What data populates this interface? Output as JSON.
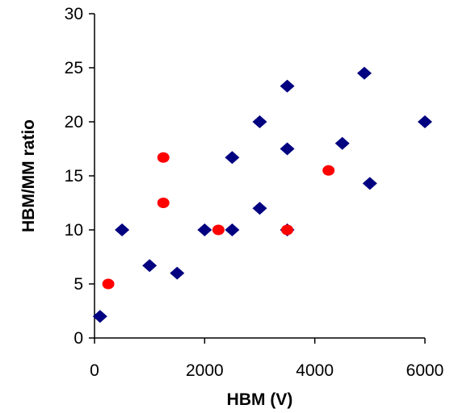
{
  "chart_data": {
    "type": "scatter",
    "title": "",
    "xlabel": "HBM (V)",
    "ylabel": "HBM/MM ratio",
    "xlim": [
      0,
      6000
    ],
    "ylim": [
      0,
      30
    ],
    "x_ticks": [
      "0",
      "2000",
      "4000",
      "6000"
    ],
    "y_ticks": [
      "0",
      "5",
      "10",
      "15",
      "20",
      "25",
      "30"
    ],
    "grid": false,
    "legend": "none",
    "series": [
      {
        "marker": "diamond",
        "color": "#000080",
        "points": [
          {
            "x": 100,
            "y": 2
          },
          {
            "x": 500,
            "y": 10
          },
          {
            "x": 1000,
            "y": 6.7
          },
          {
            "x": 1500,
            "y": 6
          },
          {
            "x": 2000,
            "y": 10
          },
          {
            "x": 2500,
            "y": 16.7
          },
          {
            "x": 2500,
            "y": 10
          },
          {
            "x": 3000,
            "y": 20
          },
          {
            "x": 3000,
            "y": 12
          },
          {
            "x": 3500,
            "y": 23.3
          },
          {
            "x": 3500,
            "y": 17.5
          },
          {
            "x": 3500,
            "y": 10
          },
          {
            "x": 4500,
            "y": 18
          },
          {
            "x": 4900,
            "y": 24.5
          },
          {
            "x": 5000,
            "y": 14.3
          },
          {
            "x": 6000,
            "y": 20
          }
        ]
      },
      {
        "marker": "circle",
        "color": "#ff0000",
        "points": [
          {
            "x": 250,
            "y": 5
          },
          {
            "x": 1250,
            "y": 16.7
          },
          {
            "x": 1250,
            "y": 12.5
          },
          {
            "x": 2250,
            "y": 10
          },
          {
            "x": 3500,
            "y": 10
          },
          {
            "x": 4250,
            "y": 15.5
          }
        ]
      }
    ]
  }
}
